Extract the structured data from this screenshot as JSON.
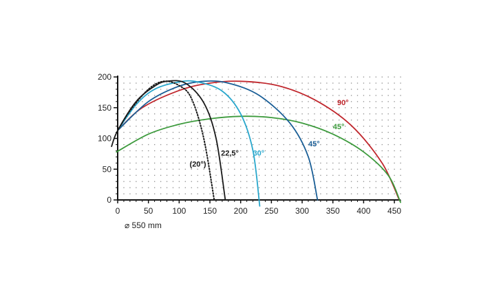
{
  "chart_data": {
    "type": "line",
    "xlim": [
      0,
      460
    ],
    "ylim": [
      0,
      200
    ],
    "x_ticks": [
      "0",
      "50",
      "100",
      "150",
      "200",
      "250",
      "300",
      "350",
      "400",
      "450"
    ],
    "y_ticks": [
      "0",
      "50",
      "100",
      "150",
      "200"
    ],
    "grid": "dotted",
    "annotation": "⌀  550 mm",
    "series": [
      {
        "name": "90°",
        "color": "#c0272d",
        "dash": "none",
        "label_pos": [
          357,
          154
        ],
        "x": [
          0,
          40,
          100,
          150,
          200,
          260,
          320,
          380,
          430,
          458
        ],
        "y": [
          113,
          150,
          178,
          190,
          193,
          186,
          163,
          121,
          60,
          0
        ]
      },
      {
        "name": "45°",
        "color": "#3c9a3c",
        "dash": "none",
        "label_pos": [
          350,
          115
        ],
        "x": [
          -2,
          50,
          100,
          150,
          200,
          250,
          300,
          350,
          400,
          440,
          460
        ],
        "y": [
          78,
          107,
          123,
          132,
          136,
          134,
          125,
          107,
          78,
          40,
          -4
        ]
      },
      {
        "name": "45°",
        "color": "#1a5e96",
        "dash": "none",
        "label_pos": [
          310,
          87
        ],
        "x": [
          0,
          50,
          100,
          140,
          180,
          230,
          280,
          310,
          325
        ],
        "y": [
          113,
          160,
          185,
          193,
          190,
          170,
          125,
          70,
          0
        ]
      },
      {
        "name": "30°",
        "color": "#29a7cc",
        "dash": "none",
        "label_pos": [
          220,
          72
        ],
        "x": [
          0,
          30,
          60,
          100,
          130,
          170,
          200,
          220,
          231
        ],
        "y": [
          113,
          155,
          180,
          192,
          192,
          177,
          140,
          80,
          -10
        ]
      },
      {
        "name": "22,5°",
        "color": "#1a1a1a",
        "dash": "none",
        "label_pos": [
          168,
          72
        ],
        "x": [
          -10,
          0,
          30,
          60,
          80,
          110,
          140,
          160,
          175
        ],
        "y": [
          87,
          113,
          160,
          185,
          193,
          190,
          158,
          100,
          0
        ]
      },
      {
        "name": "(20°)",
        "color": "#1a1a1a",
        "dash": "dotted",
        "label_pos": [
          117,
          54
        ],
        "x": [
          0,
          20,
          50,
          75,
          100,
          120,
          140,
          157
        ],
        "y": [
          113,
          145,
          180,
          193,
          186,
          165,
          100,
          0
        ]
      }
    ]
  }
}
